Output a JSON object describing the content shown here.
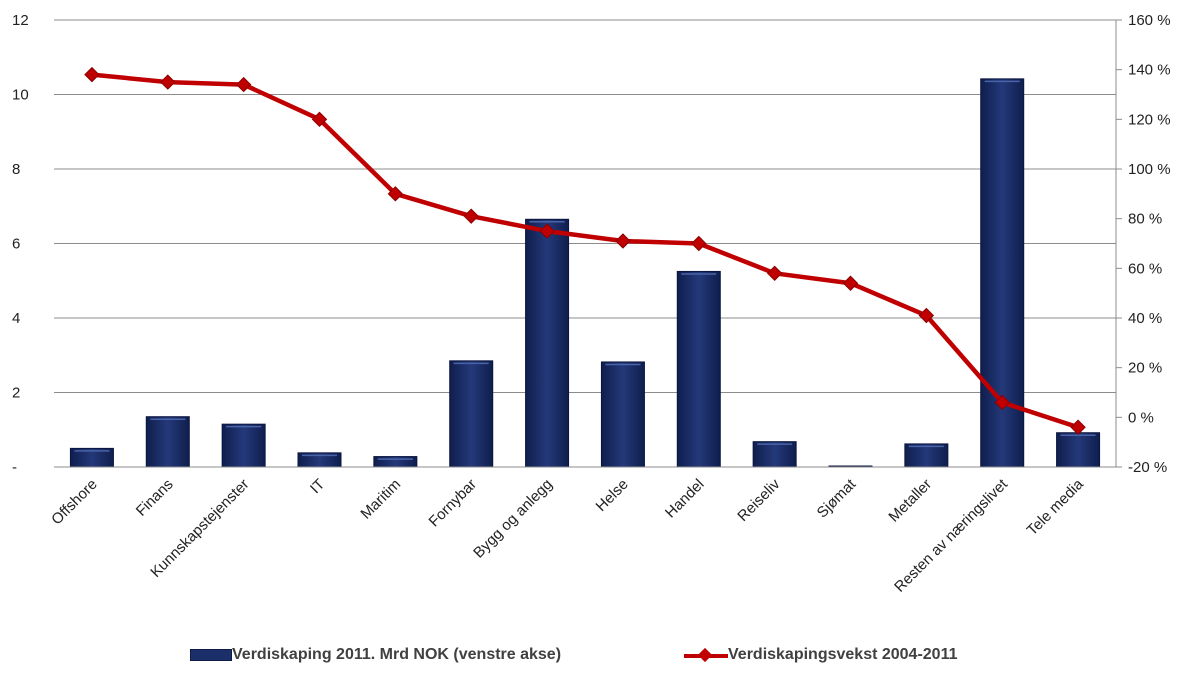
{
  "chart_data": {
    "type": "bar+line",
    "categories": [
      "Offshore",
      "Finans",
      "Kunnskapstejenster",
      "IT",
      "Maritim",
      "Fornybar",
      "Bygg og anlegg",
      "Helse",
      "Handel",
      "Reiseliv",
      "Sjømat",
      "Metaller",
      "Resten av næringslivet",
      "Tele media"
    ],
    "series": [
      {
        "name": "Verdiskaping 2011. Mrd NOK (venstre akse)",
        "type": "bar",
        "axis": "left",
        "color": "#1b2f6b",
        "values": [
          0.5,
          1.35,
          1.15,
          0.38,
          0.28,
          2.85,
          6.65,
          2.82,
          5.25,
          0.68,
          0.02,
          0.62,
          10.42,
          0.92
        ]
      },
      {
        "name": "Verdiskapingsvekst 2004-2011",
        "type": "line",
        "axis": "right",
        "color": "#c00000",
        "values": [
          138,
          135,
          134,
          120,
          90,
          81,
          75,
          71,
          70,
          58,
          54,
          41,
          6,
          -4
        ]
      }
    ],
    "y_left": {
      "ylim": [
        0,
        12
      ],
      "ticks": [
        "-",
        "2",
        "4",
        "6",
        "8",
        "10",
        "12"
      ]
    },
    "y_right": {
      "ylim": [
        -20,
        160
      ],
      "ticks": [
        "-20 %",
        "0 %",
        "20 %",
        "40 %",
        "60 %",
        "80 %",
        "100 %",
        "120 %",
        "140 %",
        "160 %"
      ]
    },
    "grid": true,
    "legend_position": "bottom"
  }
}
